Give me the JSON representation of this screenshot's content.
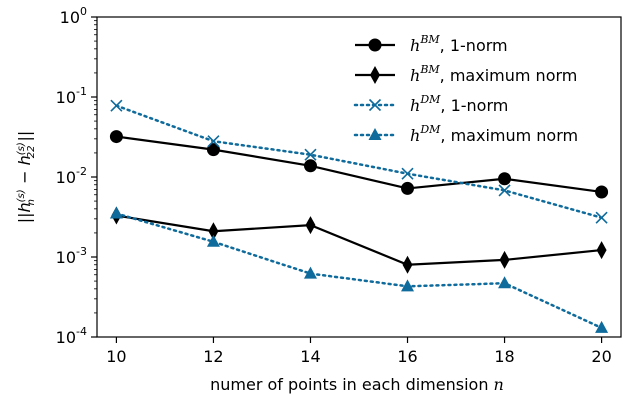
{
  "chart_data": {
    "type": "line",
    "title": "",
    "xlabel": "numer of points in each dimension n",
    "ylabel": "||h_n^(s) - h_22^(s)||",
    "x": [
      10,
      12,
      14,
      16,
      18,
      20
    ],
    "xlim": [
      9.6,
      20.4
    ],
    "xticks": [
      "10",
      "12",
      "14",
      "16",
      "18",
      "20"
    ],
    "yscale": "log",
    "ylim": [
      0.0001,
      1
    ],
    "yticks": [
      {
        "value": 1,
        "base": "10",
        "exp": "0"
      },
      {
        "value": 0.1,
        "base": "10",
        "exp": "-1"
      },
      {
        "value": 0.01,
        "base": "10",
        "exp": "-2"
      },
      {
        "value": 0.001,
        "base": "10",
        "exp": "-3"
      },
      {
        "value": 0.0001,
        "base": "10",
        "exp": "-4"
      }
    ],
    "grid": false,
    "legend_position": "top-right",
    "series": [
      {
        "name": "h^BM, 1-norm",
        "sym": "h",
        "sup": "BM",
        "suffix": ", 1-norm",
        "color": "#000000",
        "style": "solid",
        "marker": "circle",
        "values": [
          0.032,
          0.022,
          0.0138,
          0.0072,
          0.0095,
          0.0065
        ]
      },
      {
        "name": "h^BM, maximum norm",
        "sym": "h",
        "sup": "BM",
        "suffix": ", maximum norm",
        "color": "#000000",
        "style": "solid",
        "marker": "diamond",
        "values": [
          0.0033,
          0.0021,
          0.0025,
          0.0008,
          0.00092,
          0.00122
        ]
      },
      {
        "name": "h^DM, 1-norm",
        "sym": "h",
        "sup": "DM",
        "suffix": ", 1-norm",
        "color": "#0e6b9c",
        "style": "dotted",
        "marker": "x",
        "values": [
          0.078,
          0.028,
          0.019,
          0.011,
          0.0068,
          0.0031
        ]
      },
      {
        "name": "h^DM, maximum norm",
        "sym": "h",
        "sup": "DM",
        "suffix": ", maximum norm",
        "color": "#0e6b9c",
        "style": "dotted",
        "marker": "triangle",
        "values": [
          0.0035,
          0.00155,
          0.00062,
          0.00043,
          0.00047,
          0.00013
        ]
      }
    ]
  }
}
